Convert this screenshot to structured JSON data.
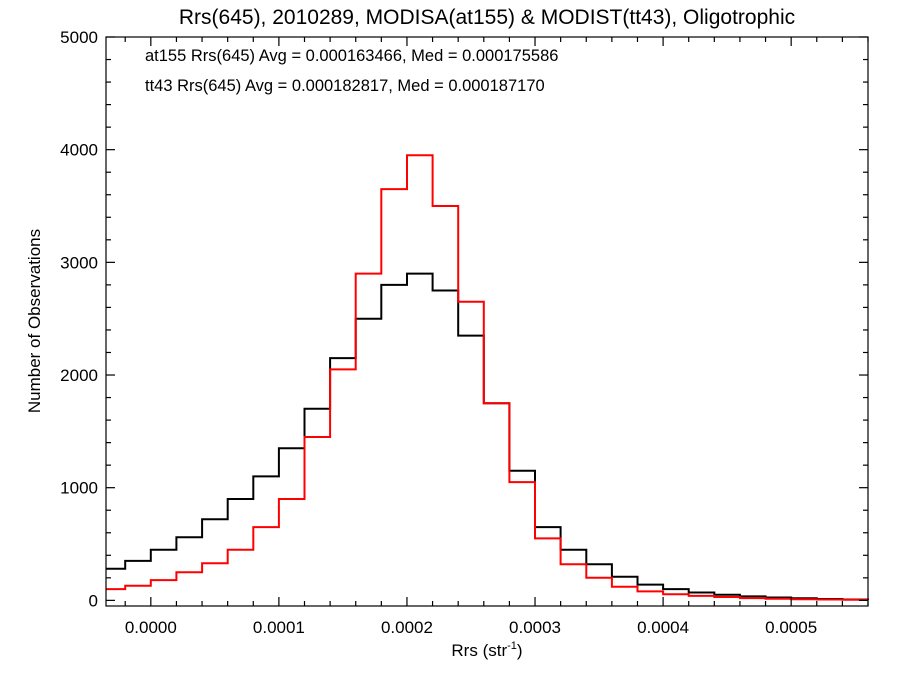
{
  "chart_data": {
    "type": "line",
    "step": true,
    "title": "Rrs(645), 2010289, MODISA(at155) & MODIST(tt43), Oligotrophic",
    "xlabel": "Rrs (str",
    "xlabel_sup": "-1",
    "xlabel_close": ")",
    "ylabel": "Number of Observations",
    "xlim": [
      -3.5e-05,
      0.00056
    ],
    "ylim": [
      -50,
      5000
    ],
    "xticks": [
      0.0,
      0.0001,
      0.0002,
      0.0003,
      0.0004,
      0.0005
    ],
    "xtick_labels": [
      "0.0000",
      "0.0001",
      "0.0002",
      "0.0003",
      "0.0004",
      "0.0005"
    ],
    "yticks": [
      0,
      1000,
      2000,
      3000,
      4000,
      5000
    ],
    "ytick_labels": [
      "0",
      "1000",
      "2000",
      "3000",
      "4000",
      "5000"
    ],
    "legend_position": "top-left",
    "series": [
      {
        "name": "at155",
        "color": "#000000",
        "annotation": "at155 Rrs(645) Avg = 0.000163466, Med = 0.000175586",
        "x": [
          -3.5e-05,
          -2e-05,
          0.0,
          2e-05,
          4e-05,
          6e-05,
          8e-05,
          0.0001,
          0.00012,
          0.00014,
          0.00016,
          0.00018,
          0.0002,
          0.00022,
          0.00024,
          0.00026,
          0.00028,
          0.0003,
          0.00032,
          0.00034,
          0.00036,
          0.00038,
          0.0004,
          0.00042,
          0.00044,
          0.00046,
          0.00048,
          0.0005,
          0.00052,
          0.00054,
          0.00056
        ],
        "y": [
          280,
          350,
          450,
          560,
          720,
          900,
          1100,
          1350,
          1700,
          2150,
          2500,
          2800,
          2900,
          2750,
          2350,
          1750,
          1150,
          650,
          450,
          320,
          210,
          140,
          100,
          70,
          50,
          35,
          25,
          18,
          12,
          8,
          5
        ]
      },
      {
        "name": "tt43",
        "color": "#ff0000",
        "annotation": "tt43 Rrs(645) Avg = 0.000182817, Med = 0.000187170",
        "x": [
          -3.5e-05,
          -2e-05,
          0.0,
          2e-05,
          4e-05,
          6e-05,
          8e-05,
          0.0001,
          0.00012,
          0.00014,
          0.00016,
          0.00018,
          0.0002,
          0.00022,
          0.00024,
          0.00026,
          0.00028,
          0.0003,
          0.00032,
          0.00034,
          0.00036,
          0.00038,
          0.0004,
          0.00042,
          0.00044,
          0.00046,
          0.00048,
          0.0005,
          0.00052,
          0.00054,
          0.00056
        ],
        "y": [
          100,
          130,
          180,
          250,
          330,
          450,
          650,
          900,
          1450,
          2050,
          2900,
          3650,
          3950,
          3500,
          2650,
          1750,
          1050,
          550,
          320,
          200,
          120,
          80,
          55,
          40,
          30,
          20,
          15,
          10,
          8,
          5,
          3
        ]
      }
    ]
  }
}
